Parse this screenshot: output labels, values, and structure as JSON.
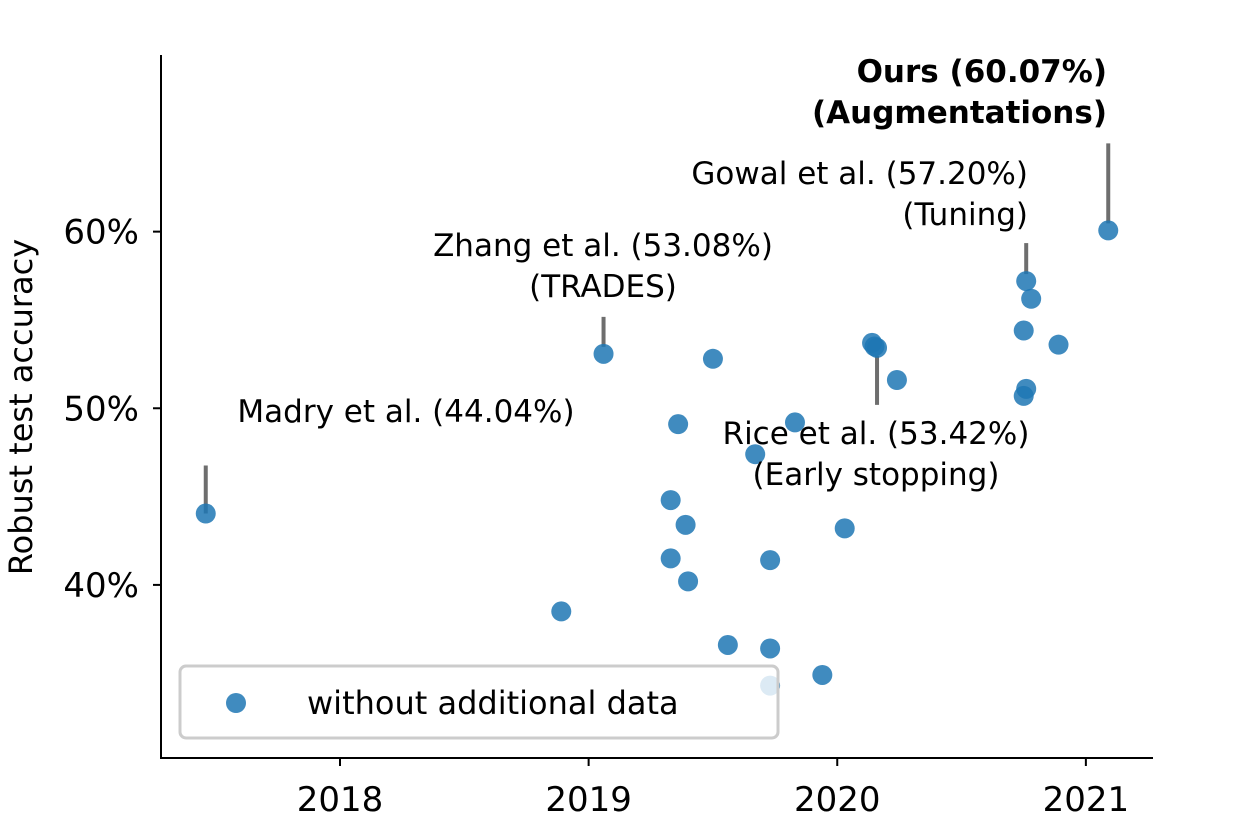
{
  "chart_data": {
    "type": "scatter",
    "title": "",
    "xlabel": "",
    "ylabel": "Robust test accuracy",
    "xlim": [
      2017.28,
      2021.27
    ],
    "ylim": [
      30.2,
      70.0
    ],
    "xticks": [
      2018,
      2019,
      2020,
      2021
    ],
    "xtick_labels": [
      "2018",
      "2019",
      "2020",
      "2021"
    ],
    "yticks": [
      40,
      50,
      60
    ],
    "ytick_labels": [
      "40%",
      "50%",
      "60%"
    ],
    "grid": false,
    "legend": {
      "position": "lower-left",
      "entries": [
        "without additional data"
      ]
    },
    "colors": {
      "points": "#1f77b4",
      "leader": "#6e6e6e",
      "legend_border": "#cccccc"
    },
    "series": [
      {
        "name": "without additional data",
        "x": [
          2017.46,
          2018.89,
          2019.06,
          2019.33,
          2019.33,
          2019.36,
          2019.39,
          2019.4,
          2019.5,
          2019.56,
          2019.67,
          2019.73,
          2019.73,
          2019.73,
          2019.83,
          2019.94,
          2020.03,
          2020.14,
          2020.15,
          2020.16,
          2020.24,
          2020.75,
          2020.75,
          2020.76,
          2020.76,
          2020.78,
          2020.89,
          2021.09
        ],
        "y": [
          44.04,
          38.5,
          53.08,
          41.5,
          44.8,
          49.1,
          43.4,
          40.2,
          52.8,
          36.6,
          47.4,
          41.4,
          36.4,
          34.3,
          49.2,
          34.9,
          43.2,
          53.7,
          53.5,
          53.42,
          51.6,
          50.7,
          54.4,
          51.1,
          57.2,
          56.2,
          53.6,
          60.07
        ]
      }
    ],
    "annotations": [
      {
        "lines": [
          "Madry et al. (44.04%)"
        ],
        "x": 2017.46,
        "y": 44.04,
        "bold": false
      },
      {
        "lines": [
          "Zhang et al. (53.08%)",
          "(TRADES)"
        ],
        "x": 2019.06,
        "y": 53.08,
        "bold": false
      },
      {
        "lines": [
          "Rice et al. (53.42%)",
          "(Early stopping)"
        ],
        "x": 2020.16,
        "y": 53.42,
        "bold": false
      },
      {
        "lines": [
          "Gowal et al. (57.20%)",
          "(Tuning)"
        ],
        "x": 2020.76,
        "y": 57.2,
        "bold": false
      },
      {
        "lines": [
          "Ours (60.07%)",
          "(Augmentations)"
        ],
        "x": 2021.09,
        "y": 60.07,
        "bold": true
      }
    ]
  }
}
